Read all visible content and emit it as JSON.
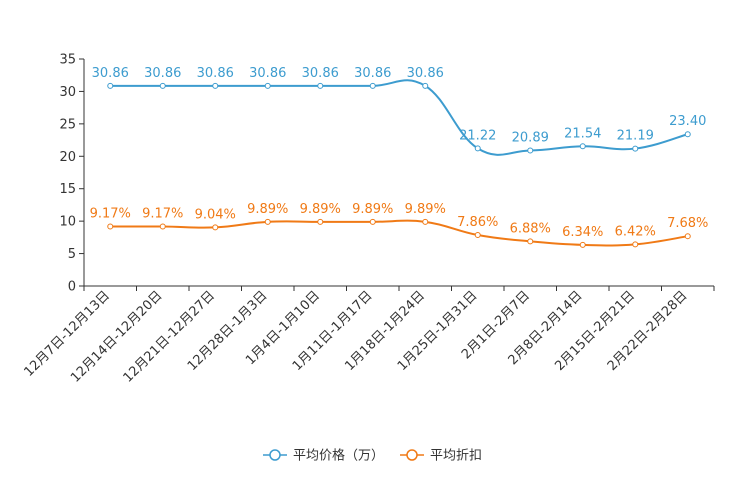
{
  "chart_data": {
    "type": "line",
    "title": "",
    "xlabel": "",
    "ylabel": "",
    "ylim": [
      0,
      35
    ],
    "yticks": [
      0,
      5,
      10,
      15,
      20,
      25,
      30,
      35
    ],
    "grid": false,
    "legend_position": "bottom-center",
    "categories": [
      "12月7日-12月13日",
      "12月14日-12月20日",
      "12月21日-12月27日",
      "12月28日-1月3日",
      "1月4日-1月10日",
      "1月11日-1月17日",
      "1月18日-1月24日",
      "1月25日-1月31日",
      "2月1日-2月7日",
      "2月8日-2月14日",
      "2月15日-2月21日",
      "2月22日-2月28日"
    ],
    "series": [
      {
        "name": "平均价格（万）",
        "color": "#3d9ccf",
        "values": [
          30.86,
          30.86,
          30.86,
          30.86,
          30.86,
          30.86,
          30.86,
          21.22,
          20.89,
          21.54,
          21.19,
          23.4
        ],
        "labels": [
          "30.86",
          "30.86",
          "30.86",
          "30.86",
          "30.86",
          "30.86",
          "30.86",
          "21.22",
          "20.89",
          "21.54",
          "21.19",
          "23.40"
        ]
      },
      {
        "name": "平均折扣",
        "color": "#f07a16",
        "values": [
          9.17,
          9.17,
          9.04,
          9.89,
          9.89,
          9.89,
          9.89,
          7.86,
          6.88,
          6.34,
          6.42,
          7.68
        ],
        "labels": [
          "9.17%",
          "9.17%",
          "9.04%",
          "9.89%",
          "9.89%",
          "9.89%",
          "9.89%",
          "7.86%",
          "6.88%",
          "6.34%",
          "6.42%",
          "7.68%"
        ]
      }
    ]
  }
}
